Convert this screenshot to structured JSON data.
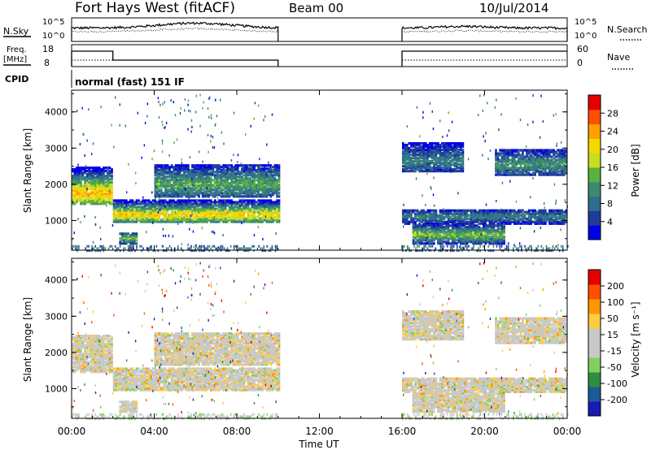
{
  "header": {
    "station": "Fort Hays West (fitACF)",
    "beam": "Beam 00",
    "date": "10/Jul/2014"
  },
  "noise_panel": {
    "left_label": "N.Sky",
    "right_label": "N.Search",
    "left_ticks": [
      "10^5",
      "10^0"
    ],
    "right_ticks": [
      "10^5",
      "10^0"
    ]
  },
  "freq_panel": {
    "left_label_1": "Freq.",
    "left_label_2": "[MHz]",
    "right_label": "Nave",
    "left_ticks": [
      "18",
      "8"
    ],
    "right_ticks": [
      "60",
      "0"
    ]
  },
  "cpid_panel": {
    "label": "CPID",
    "text": "normal (fast) 151 IF"
  },
  "colors": {
    "power_scale": [
      "#0000e6",
      "#1e3c96",
      "#2e6e8e",
      "#3c8a70",
      "#5ab040",
      "#c8dc20",
      "#f5d800",
      "#ffa000",
      "#ff5000",
      "#e60000"
    ],
    "velocity_scale": [
      "#e60000",
      "#ff5000",
      "#ff9800",
      "#ffcc40",
      "#c8c8c8",
      "#c8c8c8",
      "#80d060",
      "#2e8e40",
      "#1e5a96",
      "#1a1ab4"
    ]
  },
  "chart_data": [
    {
      "type": "heatmap",
      "name": "power",
      "ylabel": "Slant Range [km]",
      "yticks": [
        "1000",
        "2000",
        "3000",
        "4000"
      ],
      "ylim": [
        180,
        4600
      ],
      "colorbar_label": "Power [dB]",
      "colorbar_ticks": [
        "4",
        "8",
        "12",
        "16",
        "20",
        "24",
        "28"
      ],
      "colorbar_range": [
        0,
        32
      ],
      "echo_regions": [
        {
          "t0": 0.0,
          "t1": 2.0,
          "r0": 1500,
          "r1": 2500,
          "peak_r": 1800,
          "level": 24
        },
        {
          "t0": 2.0,
          "t1": 10.0,
          "r0": 1000,
          "r1": 1600,
          "peak_r": 1200,
          "level": 22
        },
        {
          "t0": 2.3,
          "t1": 3.2,
          "r0": 400,
          "r1": 700,
          "peak_r": 550,
          "level": 16
        },
        {
          "t0": 4.0,
          "t1": 10.0,
          "r0": 1700,
          "r1": 2600,
          "peak_r": 2050,
          "level": 14
        },
        {
          "t0": 16.0,
          "t1": 19.0,
          "r0": 2400,
          "r1": 3200,
          "peak_r": 2700,
          "level": 10
        },
        {
          "t0": 20.5,
          "t1": 24.0,
          "r0": 2300,
          "r1": 3000,
          "peak_r": 2600,
          "level": 12
        },
        {
          "t0": 16.0,
          "t1": 24.0,
          "r0": 950,
          "r1": 1350,
          "peak_r": 1150,
          "level": 10
        },
        {
          "t0": 16.5,
          "t1": 21.0,
          "r0": 400,
          "r1": 900,
          "peak_r": 650,
          "level": 16
        }
      ]
    },
    {
      "type": "heatmap",
      "name": "velocity",
      "ylabel": "Slant Range [km]",
      "yticks": [
        "1000",
        "2000",
        "3000",
        "4000"
      ],
      "ylim": [
        180,
        4600
      ],
      "colorbar_label": "Velocity [m s⁻¹]",
      "colorbar_ticks": [
        "200",
        "100",
        "50",
        "15",
        "-15",
        "-50",
        "-100",
        "-200"
      ],
      "colorbar_range": [
        -250,
        250
      ]
    }
  ],
  "time_axis": {
    "label": "Time UT",
    "ticks": [
      "00:00",
      "04:00",
      "08:00",
      "12:00",
      "16:00",
      "20:00",
      "00:00"
    ],
    "range_hours": [
      0,
      24
    ],
    "data_gap_hours": [
      10,
      16
    ]
  }
}
